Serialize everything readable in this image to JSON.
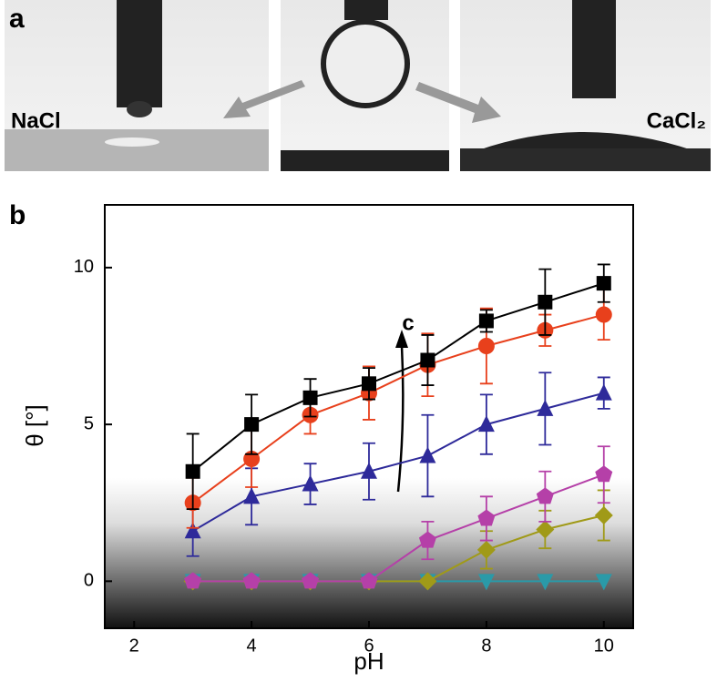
{
  "panels": {
    "a": "a",
    "b": "b"
  },
  "photos": {
    "left_label": "NaCl",
    "right_label": "CaCl₂"
  },
  "chart_data": {
    "type": "line",
    "x_label": "pH",
    "y_label": "θ [°]",
    "annotation": "c",
    "x": [
      3,
      4,
      5,
      6,
      7,
      8,
      9,
      10
    ],
    "xlim": [
      1.5,
      10.5
    ],
    "ylim": [
      -1.5,
      12
    ],
    "xticks": [
      2,
      4,
      6,
      8,
      10
    ],
    "yticks": [
      0,
      5,
      10
    ],
    "series": [
      {
        "color": "#000000",
        "marker": "square",
        "values": [
          3.5,
          5.0,
          5.85,
          6.3,
          7.05,
          8.3,
          8.9,
          9.5
        ],
        "errors": [
          1.2,
          0.95,
          0.6,
          0.5,
          0.8,
          0.35,
          1.05,
          0.6
        ]
      },
      {
        "color": "#e8401c",
        "marker": "circle",
        "values": [
          2.5,
          3.9,
          5.3,
          6.0,
          6.9,
          7.5,
          8.0,
          8.5
        ],
        "errors": [
          0.8,
          0.9,
          0.6,
          0.85,
          1.0,
          1.2,
          0.5,
          0.8
        ]
      },
      {
        "color": "#2e2a9a",
        "marker": "triangle",
        "values": [
          1.6,
          2.7,
          3.1,
          3.5,
          4.0,
          5.0,
          5.5,
          6.0
        ],
        "errors": [
          0.8,
          0.9,
          0.65,
          0.9,
          1.3,
          0.95,
          1.15,
          0.5
        ]
      },
      {
        "color": "#b540a8",
        "marker": "pentagon",
        "values": [
          0,
          0,
          0,
          0,
          1.3,
          2.0,
          2.7,
          3.4
        ],
        "errors": [
          null,
          null,
          null,
          null,
          0.6,
          0.7,
          0.8,
          0.9
        ]
      },
      {
        "color": "#a09a18",
        "marker": "diamond",
        "values": [
          0,
          0,
          0,
          0,
          0,
          1.0,
          1.65,
          2.1
        ],
        "errors": [
          null,
          null,
          null,
          null,
          null,
          0.6,
          0.6,
          0.8
        ]
      },
      {
        "color": "#2a9aa8",
        "marker": "triangle-down",
        "values": [
          0,
          0,
          0,
          0,
          0,
          0,
          0,
          0
        ],
        "errors": [
          null,
          null,
          null,
          null,
          null,
          null,
          null,
          null
        ]
      }
    ]
  }
}
